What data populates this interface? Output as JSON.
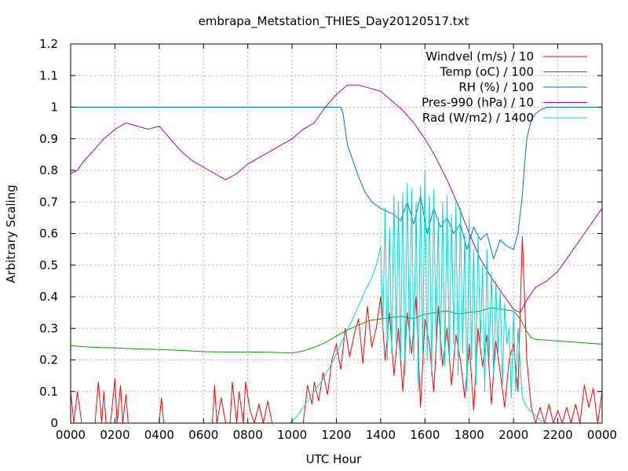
{
  "chart_data": {
    "type": "line",
    "title": "embrapa_Metstation_THIES_Day20120517.txt",
    "xlabel": "UTC Hour",
    "ylabel": "Arbitrary Scaling",
    "xlim": [
      0,
      24
    ],
    "ylim": [
      0,
      1.2
    ],
    "grid": true,
    "legend_position": "top-right",
    "x_ticks": [
      {
        "v": 0,
        "label": "0000"
      },
      {
        "v": 2,
        "label": "0200"
      },
      {
        "v": 4,
        "label": "0400"
      },
      {
        "v": 6,
        "label": "0600"
      },
      {
        "v": 8,
        "label": "0800"
      },
      {
        "v": 10,
        "label": "1000"
      },
      {
        "v": 12,
        "label": "1200"
      },
      {
        "v": 14,
        "label": "1400"
      },
      {
        "v": 16,
        "label": "1600"
      },
      {
        "v": 18,
        "label": "1800"
      },
      {
        "v": 20,
        "label": "2000"
      },
      {
        "v": 22,
        "label": "2200"
      },
      {
        "v": 24,
        "label": "0000"
      }
    ],
    "y_ticks": [
      {
        "v": 0,
        "label": "0"
      },
      {
        "v": 0.1,
        "label": "0.1"
      },
      {
        "v": 0.2,
        "label": "0.2"
      },
      {
        "v": 0.3,
        "label": "0.3"
      },
      {
        "v": 0.4,
        "label": "0.4"
      },
      {
        "v": 0.5,
        "label": "0.5"
      },
      {
        "v": 0.6,
        "label": "0.6"
      },
      {
        "v": 0.7,
        "label": "0.7"
      },
      {
        "v": 0.8,
        "label": "0.8"
      },
      {
        "v": 0.9,
        "label": "0.9"
      },
      {
        "v": 1.0,
        "label": "1"
      },
      {
        "v": 1.1,
        "label": "1.1"
      },
      {
        "v": 1.2,
        "label": "1.2"
      }
    ],
    "series": [
      {
        "name": "Windvel (m/s) / 10",
        "color": "#ff0000",
        "x": [
          0,
          0.15,
          0.3,
          0.5,
          0.7,
          0.9,
          1.1,
          1.25,
          1.4,
          1.5,
          1.6,
          1.8,
          2.0,
          2.1,
          2.25,
          2.35,
          2.5,
          2.6,
          2.8,
          3.0,
          3.2,
          3.4,
          3.6,
          3.8,
          4.0,
          4.1,
          4.2,
          4.4,
          4.6,
          4.8,
          5.0,
          5.2,
          5.4,
          5.6,
          5.8,
          6.0,
          6.2,
          6.4,
          6.5,
          6.6,
          6.8,
          7.0,
          7.2,
          7.3,
          7.5,
          7.6,
          7.8,
          7.9,
          8.1,
          8.3,
          8.5,
          8.7,
          8.9,
          9.1,
          9.3,
          9.5,
          9.7,
          9.9,
          10.1,
          10.3,
          10.5,
          10.7,
          10.9,
          11.0,
          11.2,
          11.4,
          11.6,
          11.8,
          12.0,
          12.2,
          12.4,
          12.6,
          12.8,
          13.0,
          13.2,
          13.4,
          13.6,
          13.8,
          14.0,
          14.2,
          14.4,
          14.6,
          14.8,
          15.0,
          15.2,
          15.4,
          15.6,
          15.8,
          16.0,
          16.2,
          16.4,
          16.6,
          16.8,
          17.0,
          17.2,
          17.4,
          17.6,
          17.8,
          18.0,
          18.2,
          18.4,
          18.6,
          18.8,
          19.0,
          19.2,
          19.4,
          19.6,
          19.8,
          20.0,
          20.2,
          20.4,
          20.6,
          20.8,
          21.0,
          21.2,
          21.4,
          21.6,
          21.8,
          22.0,
          22.2,
          22.4,
          22.6,
          22.8,
          23.0,
          23.2,
          23.4,
          23.6,
          23.8,
          24.0
        ],
        "values": [
          0.1,
          0,
          0.1,
          0,
          0,
          0,
          0,
          0.13,
          0,
          0.1,
          0,
          0,
          0.14,
          0,
          0.12,
          0,
          0.09,
          0,
          0,
          0,
          0,
          0,
          0,
          0,
          0,
          0.08,
          0,
          0,
          0,
          0,
          0,
          0,
          0,
          0,
          0,
          0,
          0,
          0,
          0.12,
          0,
          0.08,
          0,
          0,
          0.13,
          0,
          0.1,
          0,
          0.13,
          0.04,
          0,
          0.06,
          0,
          0.07,
          0,
          0,
          0,
          0,
          0,
          0,
          0,
          0,
          0.12,
          0.06,
          0.13,
          0.07,
          0.16,
          0.09,
          0.2,
          0.25,
          0.17,
          0.3,
          0.21,
          0.28,
          0.33,
          0.19,
          0.37,
          0.24,
          0.3,
          0.4,
          0.2,
          0.35,
          0.15,
          0.3,
          0.1,
          0.35,
          0.22,
          0.4,
          0.05,
          0.33,
          0.25,
          0.1,
          0.37,
          0.18,
          0.3,
          0.12,
          0.28,
          0.2,
          0.08,
          0.25,
          0.04,
          0.3,
          0.18,
          0.28,
          0.06,
          0.26,
          0.16,
          0.05,
          0.2,
          0.25,
          0.1,
          0.59,
          0.2,
          0.05,
          0,
          0.05,
          0,
          0.06,
          0,
          0.04,
          0,
          0.05,
          0,
          0.06,
          0,
          0.12,
          0.05,
          0.11,
          0,
          0.1
        ]
      },
      {
        "name": "Temp (oC) / 100",
        "color": "#00a000",
        "x": [
          0,
          1,
          2,
          3,
          4,
          5,
          6,
          7,
          8,
          9,
          10,
          10.5,
          11,
          11.5,
          12,
          12.5,
          13,
          13.5,
          14,
          14.5,
          15,
          15.5,
          16,
          16.5,
          17,
          17.5,
          18,
          18.5,
          19,
          19.5,
          20,
          20.3,
          20.6,
          20.8,
          21,
          22,
          23,
          24
        ],
        "values": [
          0.245,
          0.24,
          0.238,
          0.235,
          0.233,
          0.23,
          0.226,
          0.225,
          0.225,
          0.224,
          0.222,
          0.228,
          0.24,
          0.255,
          0.275,
          0.295,
          0.31,
          0.325,
          0.33,
          0.335,
          0.338,
          0.33,
          0.345,
          0.35,
          0.355,
          0.345,
          0.35,
          0.355,
          0.365,
          0.36,
          0.355,
          0.33,
          0.29,
          0.27,
          0.265,
          0.26,
          0.255,
          0.25
        ]
      },
      {
        "name": "RH (%) / 100",
        "color": "#0070d0",
        "x": [
          0,
          12.2,
          12.3,
          12.5,
          12.8,
          13.0,
          13.3,
          13.6,
          14.0,
          14.3,
          14.6,
          14.9,
          15.2,
          15.5,
          15.8,
          16.1,
          16.4,
          16.7,
          17.0,
          17.3,
          17.6,
          17.9,
          18.2,
          18.5,
          18.8,
          19.1,
          19.4,
          19.7,
          20.0,
          20.2,
          20.4,
          20.5,
          20.6,
          20.8,
          21.0,
          21.2,
          21.5,
          22,
          23,
          24
        ],
        "values": [
          1,
          1,
          0.98,
          0.88,
          0.82,
          0.78,
          0.73,
          0.7,
          0.68,
          0.67,
          0.66,
          0.64,
          0.7,
          0.63,
          0.72,
          0.6,
          0.68,
          0.62,
          0.65,
          0.6,
          0.63,
          0.55,
          0.62,
          0.58,
          0.6,
          0.52,
          0.58,
          0.56,
          0.55,
          0.6,
          0.72,
          0.82,
          0.9,
          0.96,
          0.98,
          0.99,
          1,
          1,
          1,
          1
        ]
      },
      {
        "name": "Pres-990 (hPa) / 10",
        "color": "#9900cc",
        "x": [
          0,
          0.3,
          0.6,
          1,
          1.5,
          2,
          2.5,
          3,
          3.5,
          4,
          4.5,
          5,
          5.5,
          6,
          6.5,
          7,
          7.5,
          8,
          8.5,
          9,
          9.5,
          10,
          10.5,
          11,
          11.5,
          12,
          12.5,
          13,
          13.5,
          14,
          14.5,
          15,
          15.5,
          16,
          16.5,
          17,
          17.5,
          18,
          18.5,
          19,
          19.5,
          20,
          20.3,
          20.6,
          21,
          21.5,
          22,
          22.5,
          23,
          23.5,
          24
        ],
        "values": [
          0.79,
          0.8,
          0.83,
          0.86,
          0.9,
          0.93,
          0.95,
          0.94,
          0.93,
          0.94,
          0.9,
          0.86,
          0.83,
          0.81,
          0.79,
          0.77,
          0.79,
          0.82,
          0.84,
          0.86,
          0.88,
          0.9,
          0.93,
          0.95,
          1.0,
          1.04,
          1.07,
          1.07,
          1.06,
          1.05,
          1.02,
          0.99,
          0.95,
          0.9,
          0.84,
          0.77,
          0.69,
          0.6,
          0.52,
          0.46,
          0.41,
          0.36,
          0.35,
          0.39,
          0.43,
          0.45,
          0.48,
          0.53,
          0.58,
          0.63,
          0.68
        ]
      },
      {
        "name": "Rad (W/m2) / 1400",
        "color": "#00d8d8",
        "x": [
          0,
          9.9,
          10.2,
          10.6,
          11.0,
          11.4,
          11.8,
          12.2,
          12.6,
          13.0,
          13.3,
          13.6,
          13.8,
          14.0,
          14.1,
          14.2,
          14.3,
          14.4,
          14.5,
          14.6,
          14.7,
          14.8,
          14.9,
          15.0,
          15.1,
          15.2,
          15.3,
          15.4,
          15.5,
          15.6,
          15.7,
          15.8,
          15.9,
          16.0,
          16.1,
          16.2,
          16.3,
          16.4,
          16.5,
          16.6,
          16.7,
          16.8,
          16.9,
          17.0,
          17.1,
          17.2,
          17.3,
          17.4,
          17.5,
          17.6,
          17.7,
          17.8,
          17.9,
          18.0,
          18.1,
          18.2,
          18.3,
          18.4,
          18.5,
          18.6,
          18.7,
          18.8,
          18.9,
          19.0,
          19.1,
          19.2,
          19.3,
          19.4,
          19.5,
          19.6,
          19.7,
          19.8,
          19.9,
          20.0,
          20.1,
          20.2,
          20.4,
          20.6,
          20.9,
          21.2,
          21.5,
          24
        ],
        "values": [
          0,
          0,
          0.02,
          0.06,
          0.1,
          0.14,
          0.19,
          0.25,
          0.31,
          0.37,
          0.42,
          0.46,
          0.5,
          0.56,
          0.3,
          0.68,
          0.2,
          0.62,
          0.22,
          0.72,
          0.25,
          0.7,
          0.2,
          0.73,
          0.15,
          0.76,
          0.22,
          0.74,
          0.2,
          0.7,
          0.1,
          0.75,
          0.22,
          0.8,
          0.2,
          0.72,
          0.15,
          0.74,
          0.25,
          0.65,
          0.2,
          0.7,
          0.18,
          0.72,
          0.2,
          0.66,
          0.25,
          0.7,
          0.15,
          0.68,
          0.22,
          0.6,
          0.1,
          0.65,
          0.2,
          0.55,
          0.12,
          0.6,
          0.25,
          0.5,
          0.1,
          0.55,
          0.2,
          0.48,
          0.15,
          0.45,
          0.22,
          0.42,
          0.12,
          0.38,
          0.25,
          0.3,
          0.08,
          0.35,
          0.1,
          0.3,
          0.08,
          0.05,
          0.03,
          0.01,
          0,
          0
        ]
      }
    ]
  }
}
